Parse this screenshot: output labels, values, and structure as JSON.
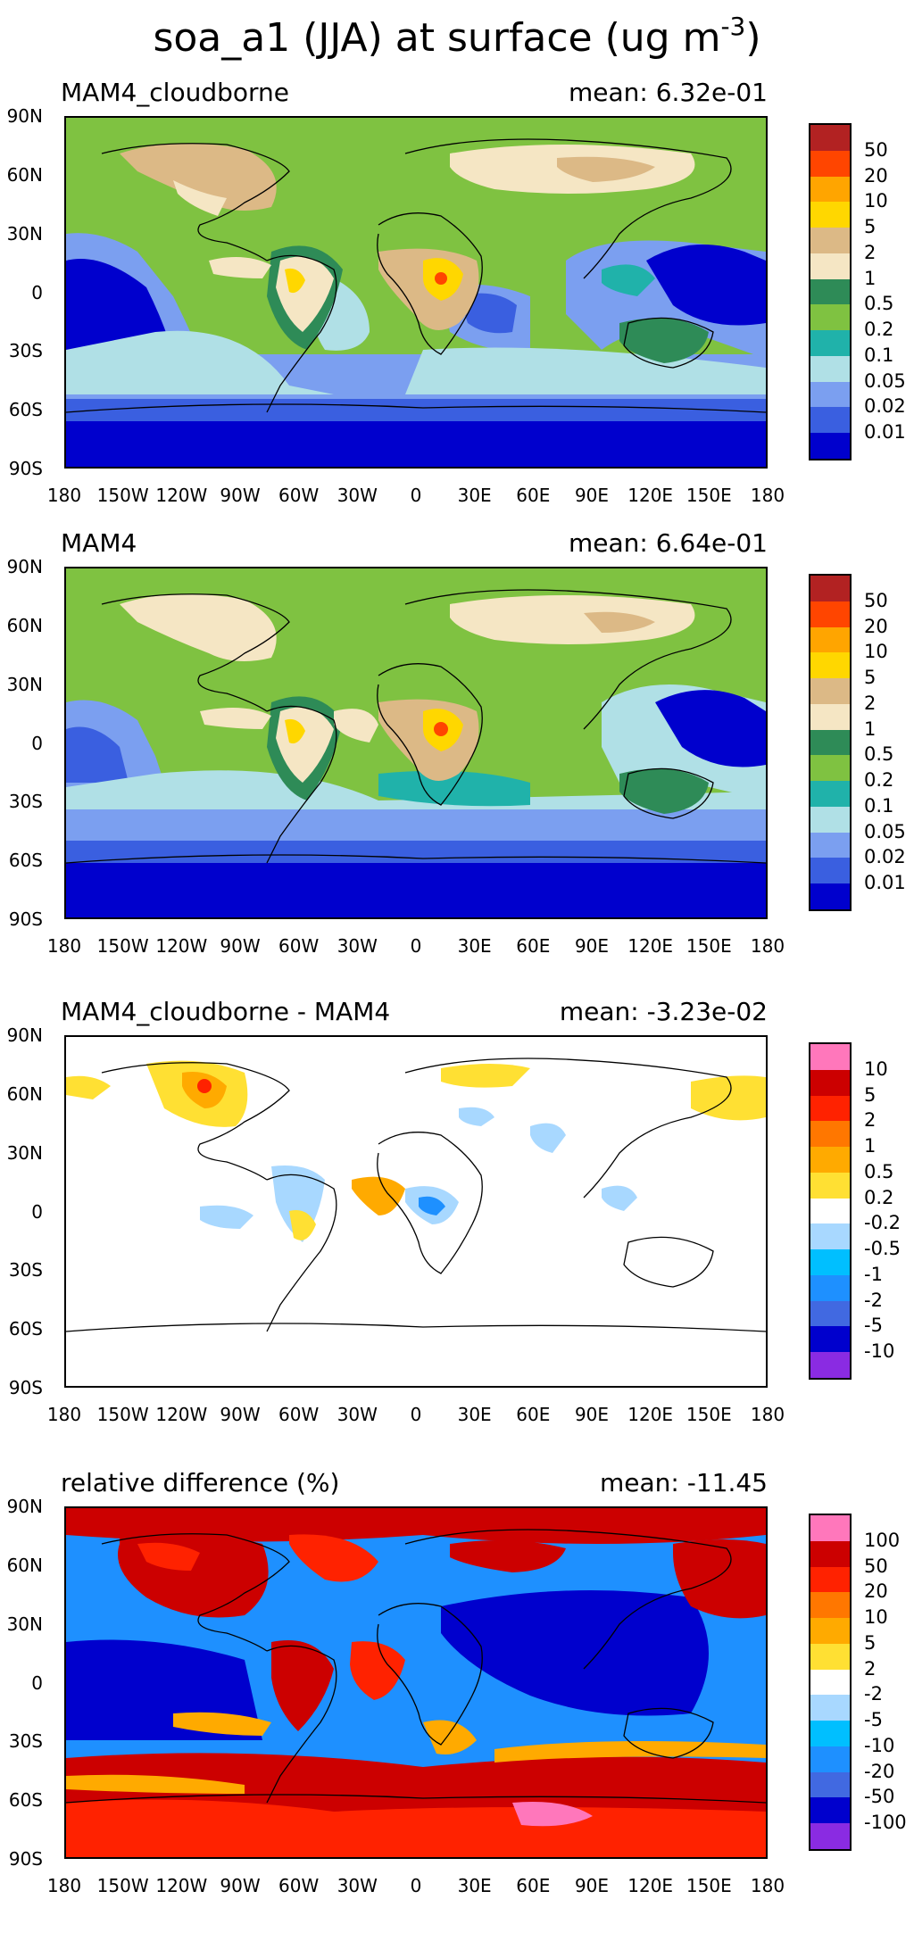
{
  "title": {
    "main": "soa_a1 (JJA) at surface (ug m",
    "exp": "-3",
    "close": ")"
  },
  "axes": {
    "lat_ticks": [
      "90N",
      "60N",
      "30N",
      "0",
      "30S",
      "60S",
      "90S"
    ],
    "lon_ticks": [
      "180",
      "150W",
      "120W",
      "90W",
      "60W",
      "30W",
      "0",
      "30E",
      "60E",
      "90E",
      "120E",
      "150E",
      "180"
    ]
  },
  "panels": [
    {
      "label": "MAM4_cloudborne",
      "mean": "mean: 6.32e-01",
      "legend_labels": [
        "50",
        "20",
        "10",
        "5",
        "2",
        "1",
        "0.5",
        "0.2",
        "0.1",
        "0.05",
        "0.02",
        "0.01"
      ],
      "legend_colors": [
        "#b22222",
        "#ff4500",
        "#ffa500",
        "#ffd700",
        "#dcb986",
        "#f5e6c4",
        "#2e8b57",
        "#7fc241",
        "#20b2aa",
        "#b0e0e6",
        "#7b9ff0",
        "#3a5fe0",
        "#0000cd"
      ]
    },
    {
      "label": "MAM4",
      "mean": "mean: 6.64e-01",
      "legend_labels": [
        "50",
        "20",
        "10",
        "5",
        "2",
        "1",
        "0.5",
        "0.2",
        "0.1",
        "0.05",
        "0.02",
        "0.01"
      ],
      "legend_colors": [
        "#b22222",
        "#ff4500",
        "#ffa500",
        "#ffd700",
        "#dcb986",
        "#f5e6c4",
        "#2e8b57",
        "#7fc241",
        "#20b2aa",
        "#b0e0e6",
        "#7b9ff0",
        "#3a5fe0",
        "#0000cd"
      ]
    },
    {
      "label": "MAM4_cloudborne - MAM4",
      "mean": "mean: -3.23e-02",
      "legend_labels": [
        "10",
        "5",
        "2",
        "1",
        "0.5",
        "0.2",
        "-0.2",
        "-0.5",
        "-1",
        "-2",
        "-5",
        "-10"
      ],
      "legend_colors": [
        "#ff77bb",
        "#cc0000",
        "#ff2200",
        "#ff7700",
        "#ffaa00",
        "#ffe033",
        "#ffffff",
        "#a8d8ff",
        "#00bfff",
        "#1e90ff",
        "#4169e1",
        "#0000cd",
        "#8a2be2"
      ]
    },
    {
      "label": "relative difference (%)",
      "mean": "mean: -11.45",
      "legend_labels": [
        "100",
        "50",
        "20",
        "10",
        "5",
        "2",
        "-2",
        "-5",
        "-10",
        "-20",
        "-50",
        "-100"
      ],
      "legend_colors": [
        "#ff77bb",
        "#cc0000",
        "#ff2200",
        "#ff7700",
        "#ffaa00",
        "#ffe033",
        "#ffffff",
        "#a8d8ff",
        "#00bfff",
        "#1e90ff",
        "#4169e1",
        "#0000cd",
        "#8a2be2"
      ]
    }
  ]
}
